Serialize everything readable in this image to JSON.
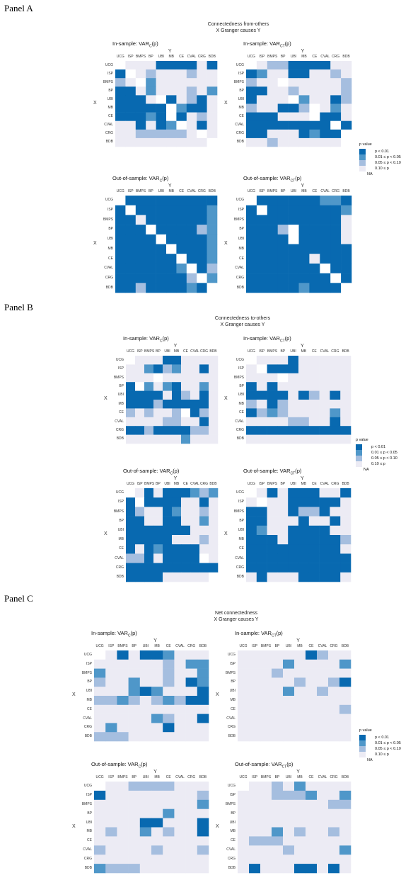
{
  "labels": {
    "y_axis": "Y",
    "x_axis": "X"
  },
  "colors": {
    "0": "#0869b0",
    "1": "#4f97c9",
    "2": "#a5bedf",
    "3": "#ecebf4",
    "4": "#ffffff"
  },
  "panels": [
    {
      "name": "Panel A",
      "title1": "Connectedness from-others",
      "title2": "X Granger causes Y"
    },
    {
      "name": "Panel B",
      "title1": "Connectedness to-others",
      "title2": "X Granger causes Y"
    },
    {
      "name": "Panel C",
      "title1": "Net connectedness",
      "title2": "X Granger causes Y"
    }
  ],
  "legend": {
    "title": "p value",
    "items": [
      "p < 0.01",
      "0.01 ≤ p < 0.05",
      "0.05 ≤ p < 0.10",
      "0.10 ≤ p",
      "NA"
    ]
  },
  "chart_data": {
    "type": "heatmap",
    "value_key": {
      "0": "p < 0.01",
      "1": "0.01 ≤ p < 0.05",
      "2": "0.05 ≤ p < 0.10",
      "3": "0.10 ≤ p",
      "4": "NA"
    },
    "rows": [
      "UCG",
      "ISP",
      "BMPS",
      "BP",
      "UBI",
      "MB",
      "CE",
      "CVAL",
      "CRG",
      "BDB"
    ],
    "cols": [
      "UCG",
      "ISP",
      "BMPS",
      "BP",
      "UBI",
      "MB",
      "CE",
      "CVAL",
      "CRG",
      "BDB"
    ],
    "heatmaps": [
      {
        "panel": 0,
        "title_pre": "In-sample: VAR",
        "title_sub": "C",
        "title_post": "(p)",
        "grid": [
          "4333000030",
          "0432333233",
          "2341333333",
          "0031333231",
          "0003403203",
          "0000041003",
          "0001040323",
          "3303014303",
          "3322222343",
          "3333333334"
        ]
      },
      {
        "panel": 0,
        "title_pre": "In-sample: VAR",
        "title_sub": "CT",
        "title_post": "(p)",
        "grid": [
          "4322000033",
          "0133003323",
          "2334333332",
          "0033233332",
          "0333413302",
          "2330024313",
          "0003334003",
          "0000000040",
          "0033301004",
          "3323333334"
        ]
      },
      {
        "panel": 0,
        "title_pre": "Out-of-sample: VAR",
        "title_sub": "C",
        "title_post": "(p)",
        "grid": [
          "4000000000",
          "0400000001",
          "0030000001",
          "0004000021",
          "0000400001",
          "0000040001",
          "0000004001",
          "0000001402",
          "0000000241",
          "0020000104"
        ]
      },
      {
        "panel": 0,
        "title_pre": "Out-of-sample: VAR",
        "title_sub": "CT",
        "title_post": "(p)",
        "grid": [
          "4000000110",
          "0400000001",
          "0000000003",
          "0002400003",
          "0000400003",
          "0000000000",
          "0000003000",
          "0000000400",
          "0000000040",
          "0000010004"
        ]
      },
      {
        "panel": 1,
        "title_pre": "In-sample: VAR",
        "title_sub": "C",
        "title_post": "(p)",
        "grid": [
          "4333003333",
          "3310213303",
          "3334333333",
          "0413103313",
          "0000302303",
          "0002000003",
          "2323324023",
          "3333223303",
          "0020000223",
          "3333331333"
        ]
      },
      {
        "panel": 1,
        "title_pre": "In-sample: VAR",
        "title_sub": "CT",
        "title_post": "(p)",
        "grid": [
          "4333033333",
          "3400033333",
          "3334333333",
          "0303333333",
          "0000302303",
          "2302333333",
          "0212333313",
          "3333223303",
          "0000000000",
          "3333333333"
        ]
      },
      {
        "panel": 1,
        "title_pre": "Out-of-sample: VAR",
        "title_sub": "C",
        "title_post": "(p)",
        "grid": [
          "4303000121",
          "0400003303",
          "0233013323",
          "0033003313",
          "0000000333",
          "0000033323",
          "0301000033",
          "2203000043",
          "0000000000",
          "0000333334"
        ]
      },
      {
        "panel": 1,
        "title_pre": "Out-of-sample: VAR",
        "title_sub": "CT",
        "title_post": "(p)",
        "grid": [
          "4303000330",
          "3433000003",
          "0033022033",
          "0033303303",
          "0133000033",
          "0003000002",
          "0000000003",
          "0000000000",
          "0000000000",
          "3033300003"
        ]
      },
      {
        "panel": 2,
        "title_pre": "In-sample: VAR",
        "title_sub": "C",
        "title_post": "(p)",
        "grid": [
          "4303001333",
          "3333332311",
          "1333332331",
          "2331332301",
          "3331013330",
          "2212321200",
          "3333333333",
          "3333312330",
          "3133330333",
          "2223333333"
        ]
      },
      {
        "panel": 2,
        "title_pre": "In-sample: VAR",
        "title_sub": "CT",
        "title_post": "(p)",
        "grid": [
          "3333330233",
          "3333133331",
          "3332333333",
          "3333323320",
          "3333133233",
          "3333333333",
          "3333333332",
          "3333333333",
          "3333333333",
          "3333333333"
        ]
      },
      {
        "panel": 2,
        "title_pre": "Out-of-sample: VAR",
        "title_sub": "C",
        "title_post": "(p)",
        "grid": [
          "4332222333",
          "0333333332",
          "3333333331",
          "3333331333",
          "3333003330",
          "3233132330",
          "3333333333",
          "2333323332",
          "3333333333",
          "1222333333"
        ]
      },
      {
        "panel": 2,
        "title_pre": "Out-of-sample: VAR",
        "title_sub": "CT",
        "title_post": "(p)",
        "grid": [
          "4332313333",
          "3332221331",
          "3333333322",
          "3333333333",
          "3333333333",
          "3331323323",
          "3222333333",
          "3333233331",
          "3333333333",
          "3033300303"
        ]
      }
    ]
  }
}
